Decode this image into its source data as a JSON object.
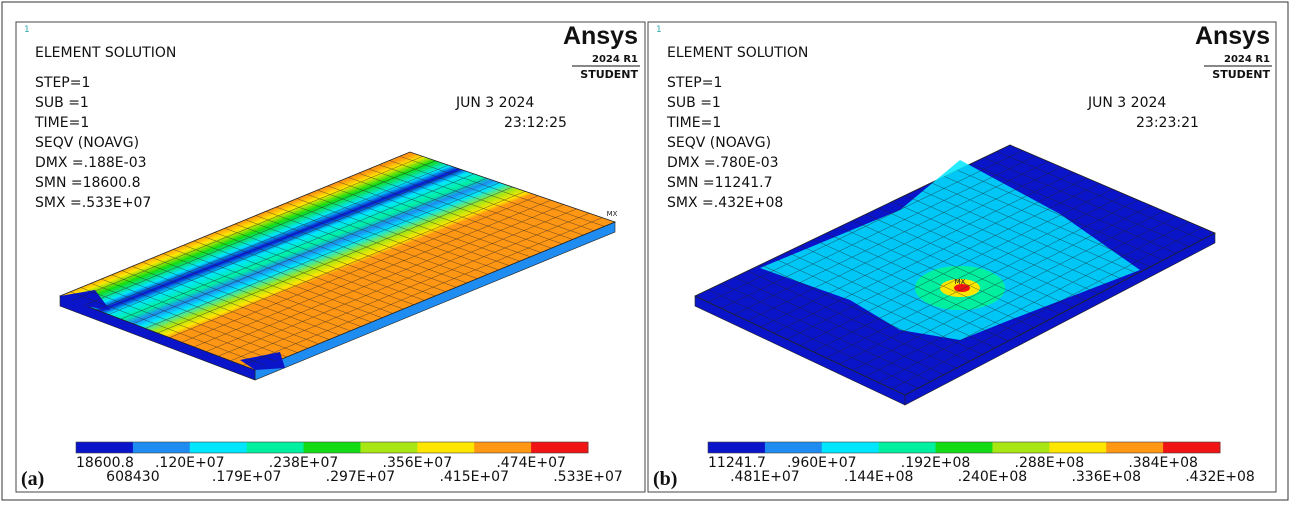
{
  "panels": [
    {
      "label": "(a)",
      "window": "1",
      "title": "ELEMENT SOLUTION",
      "info": [
        "STEP=1",
        "SUB =1",
        "TIME=1",
        "SEQV   (NOAVG)",
        "DMX =.188E-03",
        "SMN =18600.8",
        "SMX =.533E+07"
      ],
      "date": "JUN  3 2024",
      "time": "23:12:25",
      "logo": "Ansys",
      "version": "2024 R1",
      "edition": "STUDENT",
      "marker": "MX",
      "legend": {
        "colors": [
          "#0a14c8",
          "#1e8cf0",
          "#00e6ff",
          "#00f0a0",
          "#14dc14",
          "#a8e614",
          "#ffe600",
          "#ff9614",
          "#f01414"
        ],
        "labels": [
          "18600.8",
          "608430",
          ".120E+07",
          ".179E+07",
          ".238E+07",
          ".297E+07",
          ".356E+07",
          ".415E+07",
          ".474E+07",
          ".533E+07"
        ]
      }
    },
    {
      "label": "(b)",
      "window": "1",
      "title": "ELEMENT SOLUTION",
      "info": [
        "STEP=1",
        "SUB =1",
        "TIME=1",
        "SEQV   (NOAVG)",
        "DMX =.780E-03",
        "SMN =11241.7",
        "SMX =.432E+08"
      ],
      "date": "JUN  3 2024",
      "time": "23:23:21",
      "logo": "Ansys",
      "version": "2024 R1",
      "edition": "STUDENT",
      "marker": "MX",
      "legend": {
        "colors": [
          "#0a14c8",
          "#1e8cf0",
          "#00e6ff",
          "#00f0a0",
          "#14dc14",
          "#a8e614",
          "#ffe600",
          "#ff9614",
          "#f01414"
        ],
        "labels": [
          "11241.7",
          ".481E+07",
          ".960E+07",
          ".144E+08",
          ".192E+08",
          ".240E+08",
          ".288E+08",
          ".336E+08",
          ".384E+08",
          ".432E+08"
        ]
      }
    }
  ]
}
